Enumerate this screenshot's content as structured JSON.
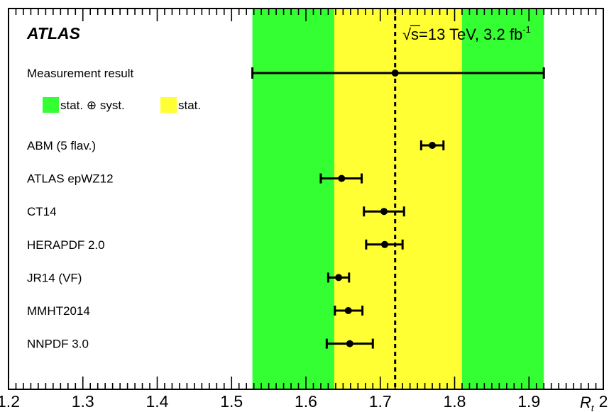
{
  "chart_data": {
    "type": "scatter",
    "experiment_label": "ATLAS",
    "energy_prefix": "s",
    "energy_text": "=13 TeV, 3.2 fb",
    "energy_sup": "-1",
    "xlabel": "R",
    "xlabel_sub": "t",
    "xlim": [
      1.2,
      2.0
    ],
    "xticks": [
      "1.2",
      "1.3",
      "1.4",
      "1.5",
      "1.6",
      "1.7",
      "1.8",
      "1.9",
      "2"
    ],
    "measurement": {
      "label": "Measurement result",
      "value": 1.72,
      "stat_band": [
        1.638,
        1.81
      ],
      "total_band": [
        1.528,
        1.92
      ]
    },
    "legend": {
      "total_label": "stat. ⊕ syst.",
      "stat_label": "stat."
    },
    "colors": {
      "total": "#33ff33",
      "stat": "#ffff33"
    },
    "predictions": [
      {
        "label": "ABM (5 flav.)",
        "value": 1.77,
        "low": 1.755,
        "high": 1.785
      },
      {
        "label": "ATLAS epWZ12",
        "value": 1.648,
        "low": 1.62,
        "high": 1.675
      },
      {
        "label": "CT14",
        "value": 1.705,
        "low": 1.678,
        "high": 1.732
      },
      {
        "label": "HERAPDF 2.0",
        "value": 1.706,
        "low": 1.681,
        "high": 1.73
      },
      {
        "label": "JR14 (VF)",
        "value": 1.644,
        "low": 1.63,
        "high": 1.658
      },
      {
        "label": "MMHT2014",
        "value": 1.657,
        "low": 1.639,
        "high": 1.676
      },
      {
        "label": "NNPDF 3.0",
        "value": 1.659,
        "low": 1.628,
        "high": 1.69
      }
    ]
  }
}
